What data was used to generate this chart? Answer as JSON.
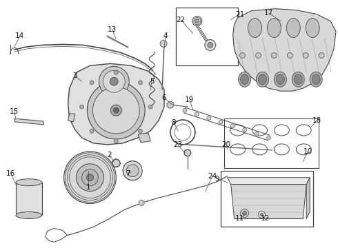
{
  "bg_color": "#ffffff",
  "line_color": "#444444",
  "text_color": "#111111",
  "label_fontsize": 7.0,
  "fig_width": 4.9,
  "fig_height": 3.6,
  "dpi": 100
}
